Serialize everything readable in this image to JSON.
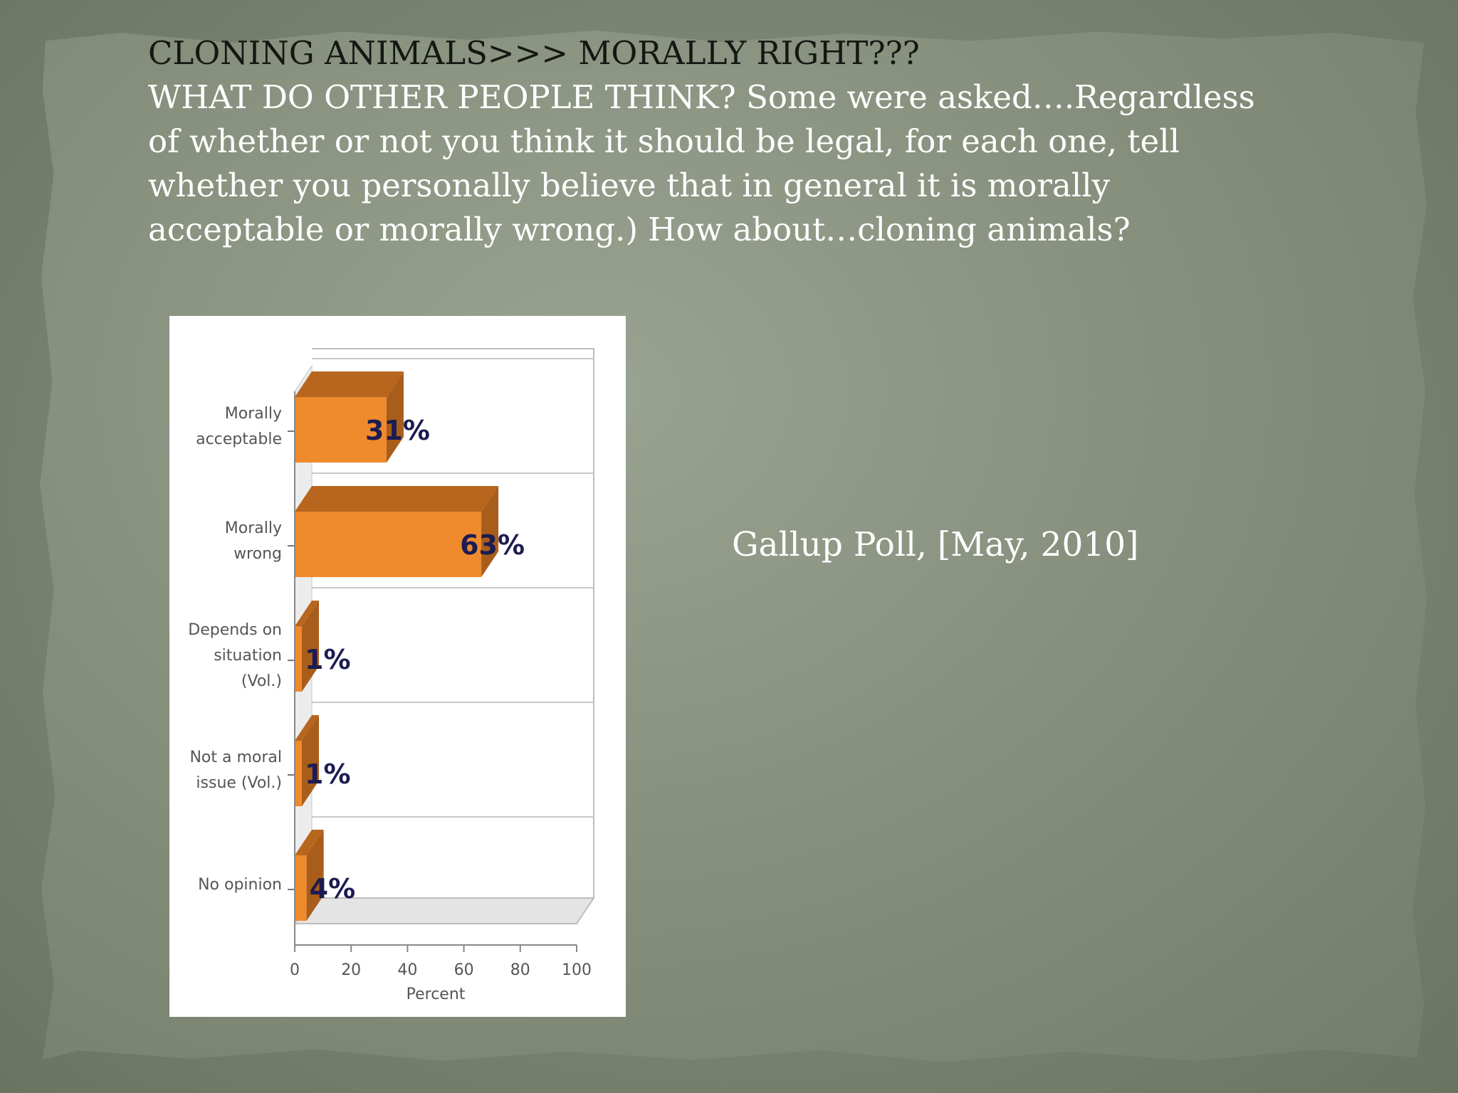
{
  "slide": {
    "heading": "CLONING ANIMALS>>> MORALLY RIGHT???",
    "question": "WHAT DO OTHER PEOPLE THINK?  Some were asked….Regardless of whether or not you think it should be legal, for each one, tell whether you personally believe that in general it is morally acceptable or morally wrong.) How about…cloning animals?",
    "source_note": "Gallup Poll, [May, 2010]"
  },
  "colors": {
    "bar_front": "#ef8a2d",
    "bar_top": "#b8661e",
    "bar_side": "#a95d1b",
    "value_label": "#1c1c52",
    "grid": "#c8c8c8"
  },
  "chart_data": {
    "type": "bar",
    "orientation": "horizontal",
    "style": "3d",
    "categories": [
      [
        "Morally",
        "acceptable"
      ],
      [
        "Morally",
        "wrong"
      ],
      [
        "Depends on",
        "situation",
        "(Vol.)"
      ],
      [
        "Not a moral",
        "issue (Vol.)"
      ],
      [
        "No opinion"
      ]
    ],
    "values": [
      31,
      63,
      1,
      1,
      4
    ],
    "value_labels": [
      "31%",
      "63%",
      "1%",
      "1%",
      "4%"
    ],
    "xlabel": "Percent",
    "xlim": [
      0,
      100
    ],
    "xticks": [
      0,
      20,
      40,
      60,
      80,
      100
    ],
    "grid": true
  }
}
